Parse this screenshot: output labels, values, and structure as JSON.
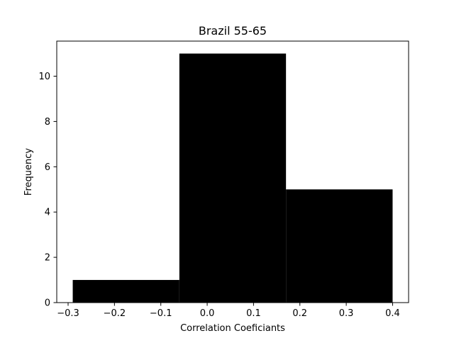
{
  "chart_data": {
    "type": "bar",
    "subtype": "histogram",
    "title": "Brazil 55-65",
    "xlabel": "Correlation Coeficiants",
    "ylabel": "Frequency",
    "bins": [
      {
        "start": -0.29,
        "end": -0.06,
        "count": 1
      },
      {
        "start": -0.06,
        "end": 0.17,
        "count": 11
      },
      {
        "start": 0.17,
        "end": 0.4,
        "count": 5
      }
    ],
    "xlim": [
      -0.3245,
      0.4345
    ],
    "ylim": [
      0,
      11.55
    ],
    "xticks": [
      -0.3,
      -0.2,
      -0.1,
      0.0,
      0.1,
      0.2,
      0.3,
      0.4
    ],
    "xtick_labels": [
      "−0.3",
      "−0.2",
      "−0.1",
      "0.0",
      "0.1",
      "0.2",
      "0.3",
      "0.4"
    ],
    "yticks": [
      0,
      2,
      4,
      6,
      8,
      10
    ],
    "ytick_labels": [
      "0",
      "2",
      "4",
      "6",
      "8",
      "10"
    ],
    "grid": false,
    "bar_color": "#000000"
  }
}
